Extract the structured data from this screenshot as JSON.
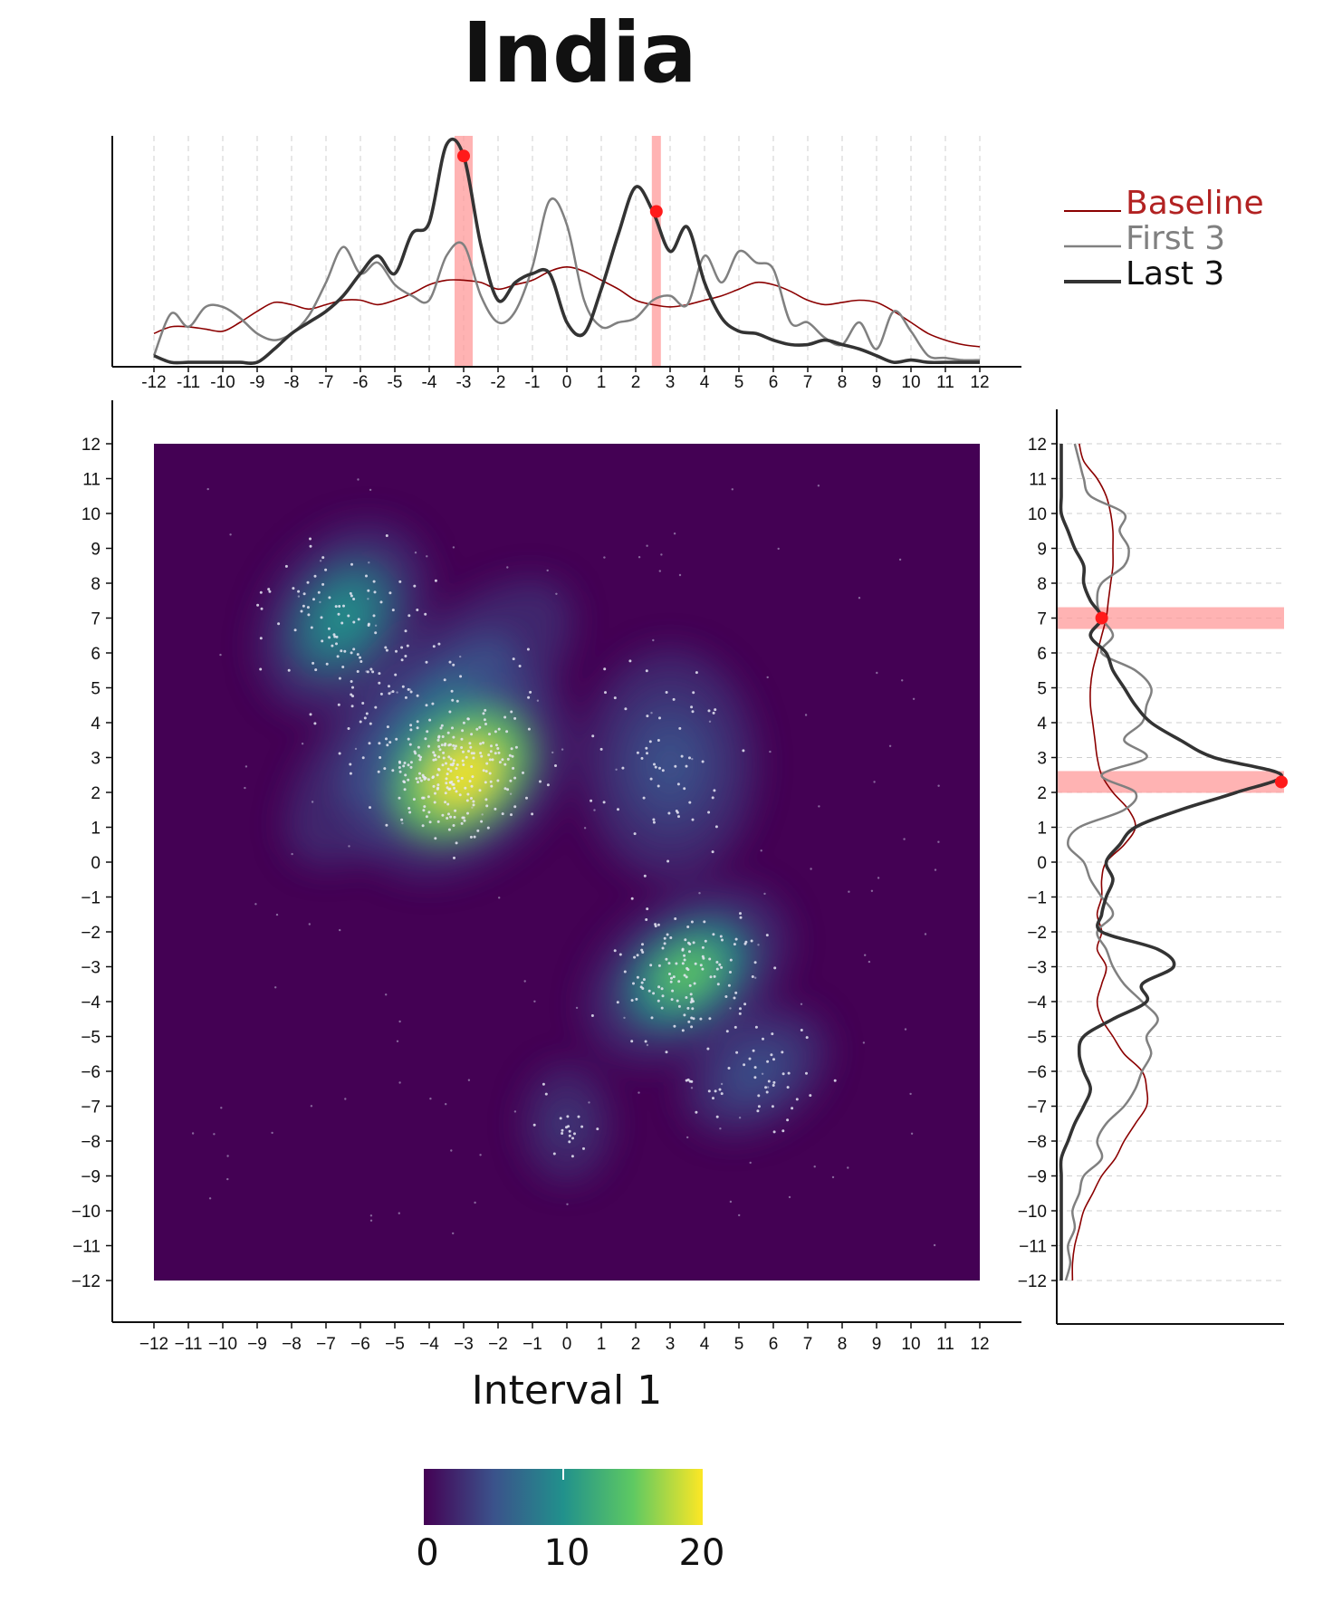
{
  "chart_data": {
    "type": "heatmap",
    "title": "India",
    "xlabel": "Interval 1",
    "ylabel": "",
    "xlim": [
      -12,
      12
    ],
    "ylim": [
      -12,
      12
    ],
    "ticks": [
      -12,
      -11,
      -10,
      -9,
      -8,
      -7,
      -6,
      -5,
      -4,
      -3,
      -2,
      -1,
      0,
      1,
      2,
      3,
      4,
      5,
      6,
      7,
      8,
      9,
      10,
      11,
      12
    ],
    "density_peaks": [
      {
        "x": -3.0,
        "y": 2.5,
        "level": 20
      },
      {
        "x": 3.5,
        "y": -3.2,
        "level": 15
      },
      {
        "x": -6.5,
        "y": 7.0,
        "level": 11
      },
      {
        "x": 3.0,
        "y": 2.8,
        "level": 6
      },
      {
        "x": -4.0,
        "y": 4.0,
        "level": 10
      },
      {
        "x": 5.5,
        "y": -6.0,
        "level": 6
      },
      {
        "x": 0.0,
        "y": -7.5,
        "level": 3
      }
    ],
    "colorbar": {
      "min": 0,
      "max": 20,
      "ticks": [
        "0",
        "10",
        "20"
      ],
      "colors": [
        "#440154",
        "#3b528b",
        "#21918c",
        "#5ec962",
        "#fde725"
      ]
    },
    "top_marginal": {
      "legend": [
        "Baseline",
        "First 3",
        "Last 3"
      ],
      "colors": {
        "Baseline": "#8b0000",
        "First 3": "#808080",
        "Last 3": "#333333"
      },
      "highlight_bands": [
        -3.0,
        2.6
      ],
      "x": [
        -12,
        -11.5,
        -11,
        -10.5,
        -10,
        -9.5,
        -9,
        -8.5,
        -8,
        -7.5,
        -7,
        -6.5,
        -6,
        -5.5,
        -5,
        -4.5,
        -4,
        -3.5,
        -3,
        -2.5,
        -2,
        -1.5,
        -1,
        -0.5,
        0,
        0.5,
        1,
        1.5,
        2,
        2.5,
        3,
        3.5,
        4,
        4.5,
        5,
        5.5,
        6,
        6.5,
        7,
        7.5,
        8,
        8.5,
        9,
        9.5,
        10,
        10.5,
        11,
        11.5,
        12
      ],
      "series": [
        {
          "name": "Baseline",
          "values": [
            0.15,
            0.18,
            0.18,
            0.17,
            0.16,
            0.2,
            0.25,
            0.29,
            0.28,
            0.26,
            0.28,
            0.3,
            0.3,
            0.28,
            0.3,
            0.33,
            0.37,
            0.39,
            0.39,
            0.38,
            0.35,
            0.37,
            0.39,
            0.43,
            0.45,
            0.43,
            0.39,
            0.35,
            0.3,
            0.28,
            0.27,
            0.28,
            0.3,
            0.32,
            0.35,
            0.38,
            0.37,
            0.34,
            0.3,
            0.28,
            0.29,
            0.3,
            0.29,
            0.25,
            0.2,
            0.15,
            0.12,
            0.1,
            0.09
          ]
        },
        {
          "name": "First 3",
          "values": [
            0.05,
            0.24,
            0.18,
            0.27,
            0.27,
            0.22,
            0.15,
            0.12,
            0.15,
            0.23,
            0.38,
            0.54,
            0.42,
            0.47,
            0.37,
            0.32,
            0.3,
            0.5,
            0.55,
            0.32,
            0.2,
            0.25,
            0.45,
            0.75,
            0.64,
            0.3,
            0.18,
            0.2,
            0.22,
            0.3,
            0.32,
            0.28,
            0.5,
            0.38,
            0.52,
            0.47,
            0.44,
            0.2,
            0.2,
            0.13,
            0.1,
            0.2,
            0.08,
            0.25,
            0.16,
            0.05,
            0.04,
            0.03,
            0.03
          ]
        },
        {
          "name": "Last 3",
          "values": [
            0.05,
            0.02,
            0.02,
            0.02,
            0.02,
            0.02,
            0.02,
            0.08,
            0.15,
            0.2,
            0.25,
            0.32,
            0.42,
            0.5,
            0.42,
            0.6,
            0.65,
            1.0,
            0.95,
            0.55,
            0.3,
            0.38,
            0.42,
            0.42,
            0.2,
            0.15,
            0.35,
            0.6,
            0.81,
            0.7,
            0.52,
            0.63,
            0.38,
            0.22,
            0.16,
            0.15,
            0.12,
            0.1,
            0.1,
            0.12,
            0.1,
            0.08,
            0.05,
            0.02,
            0.03,
            0.02,
            0.02,
            0.02,
            0.02
          ]
        }
      ]
    },
    "right_marginal": {
      "highlight_bands": [
        7.0,
        2.3
      ],
      "y": [
        -12,
        -11.5,
        -11,
        -10.5,
        -10,
        -9.5,
        -9,
        -8.5,
        -8,
        -7.5,
        -7,
        -6.5,
        -6,
        -5.5,
        -5,
        -4.5,
        -4,
        -3.5,
        -3,
        -2.5,
        -2,
        -1.5,
        -1,
        -0.5,
        0,
        0.5,
        1,
        1.5,
        2,
        2.5,
        3,
        3.5,
        4,
        4.5,
        5,
        5.5,
        6,
        6.5,
        7,
        7.5,
        8,
        8.5,
        9,
        9.5,
        10,
        10.5,
        11,
        11.5,
        12
      ],
      "series": [
        {
          "name": "Baseline",
          "values": [
            0.07,
            0.07,
            0.08,
            0.1,
            0.12,
            0.16,
            0.2,
            0.26,
            0.3,
            0.35,
            0.4,
            0.4,
            0.38,
            0.3,
            0.25,
            0.2,
            0.18,
            0.2,
            0.22,
            0.18,
            0.2,
            0.18,
            0.2,
            0.2,
            0.22,
            0.3,
            0.35,
            0.32,
            0.25,
            0.2,
            0.18,
            0.17,
            0.16,
            0.15,
            0.15,
            0.16,
            0.18,
            0.2,
            0.22,
            0.23,
            0.24,
            0.25,
            0.25,
            0.25,
            0.24,
            0.22,
            0.18,
            0.12,
            0.1
          ]
        },
        {
          "name": "First 3",
          "values": [
            0.04,
            0.06,
            0.05,
            0.08,
            0.07,
            0.1,
            0.12,
            0.2,
            0.18,
            0.22,
            0.3,
            0.35,
            0.38,
            0.42,
            0.4,
            0.45,
            0.38,
            0.3,
            0.25,
            0.22,
            0.18,
            0.25,
            0.2,
            0.15,
            0.12,
            0.05,
            0.1,
            0.3,
            0.35,
            0.2,
            0.4,
            0.3,
            0.38,
            0.4,
            0.42,
            0.35,
            0.2,
            0.25,
            0.2,
            0.18,
            0.2,
            0.3,
            0.32,
            0.28,
            0.3,
            0.15,
            0.12,
            0.1,
            0.08
          ]
        },
        {
          "name": "Last 3",
          "values": [
            0.02,
            0.02,
            0.02,
            0.02,
            0.02,
            0.02,
            0.02,
            0.02,
            0.05,
            0.08,
            0.12,
            0.15,
            0.12,
            0.1,
            0.12,
            0.25,
            0.4,
            0.38,
            0.52,
            0.45,
            0.2,
            0.2,
            0.22,
            0.25,
            0.22,
            0.28,
            0.35,
            0.55,
            0.8,
            1.0,
            0.7,
            0.55,
            0.42,
            0.35,
            0.3,
            0.25,
            0.22,
            0.15,
            0.2,
            0.15,
            0.12,
            0.12,
            0.08,
            0.05,
            0.02,
            0.02,
            0.02,
            0.02,
            0.02
          ]
        }
      ]
    }
  }
}
